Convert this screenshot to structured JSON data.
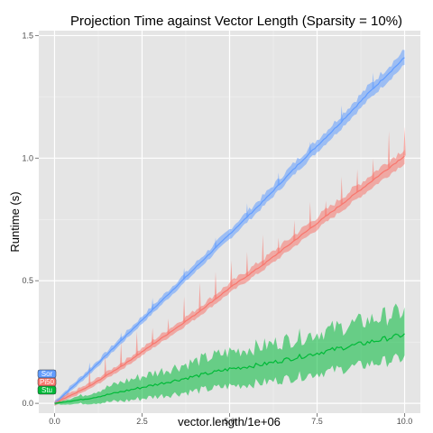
{
  "chart_data": {
    "type": "line",
    "title": "Projection Time against Vector Length (Sparsity = 10%)",
    "xlabel": "vector.length/1e+06",
    "ylabel": "Runtime (s)",
    "xlim": [
      -0.45,
      10.45
    ],
    "ylim": [
      -0.04,
      1.52
    ],
    "x_ticks": [
      "0.0",
      "2.5",
      "5.0",
      "7.5",
      "10.0"
    ],
    "x_tick_values": [
      0,
      2.5,
      5,
      7.5,
      10
    ],
    "y_ticks": [
      "0.0",
      "0.5",
      "1.0",
      "1.5"
    ],
    "y_tick_values": [
      0,
      0.5,
      1,
      1.5
    ],
    "grid": true,
    "background": "#e5e5e5",
    "legend": {
      "position": "left",
      "entries": [
        {
          "label": "Sor",
          "color": "#619cff"
        },
        {
          "label": "Pi50",
          "color": "#f8766d"
        },
        {
          "label": "Stu",
          "color": "#00ba38"
        }
      ]
    },
    "series": [
      {
        "color": "#619cff",
        "x": [
          0,
          1,
          2,
          3,
          4,
          5,
          6,
          7,
          8,
          9,
          10
        ],
        "y": [
          0.0,
          0.13,
          0.27,
          0.41,
          0.55,
          0.69,
          0.83,
          0.98,
          1.12,
          1.27,
          1.41
        ],
        "band": [
          0.01,
          0.012,
          0.014,
          0.016,
          0.018,
          0.02,
          0.022,
          0.024,
          0.026,
          0.028,
          0.03
        ]
      },
      {
        "color": "#f8766d",
        "x": [
          0,
          1,
          2,
          3,
          4,
          5,
          6,
          7,
          8,
          9,
          10
        ],
        "y": [
          0.0,
          0.07,
          0.16,
          0.26,
          0.36,
          0.47,
          0.57,
          0.68,
          0.79,
          0.9,
          1.01
        ],
        "band": [
          0.01,
          0.012,
          0.014,
          0.016,
          0.018,
          0.02,
          0.022,
          0.024,
          0.026,
          0.028,
          0.03
        ]
      },
      {
        "color": "#00ba38",
        "x": [
          0,
          1,
          2,
          3,
          4,
          5,
          6,
          7,
          8,
          9,
          10
        ],
        "y": [
          0.0,
          0.02,
          0.05,
          0.08,
          0.11,
          0.14,
          0.16,
          0.19,
          0.22,
          0.25,
          0.28
        ],
        "band": [
          0.005,
          0.02,
          0.04,
          0.05,
          0.06,
          0.07,
          0.075,
          0.08,
          0.085,
          0.09,
          0.095
        ]
      }
    ]
  }
}
